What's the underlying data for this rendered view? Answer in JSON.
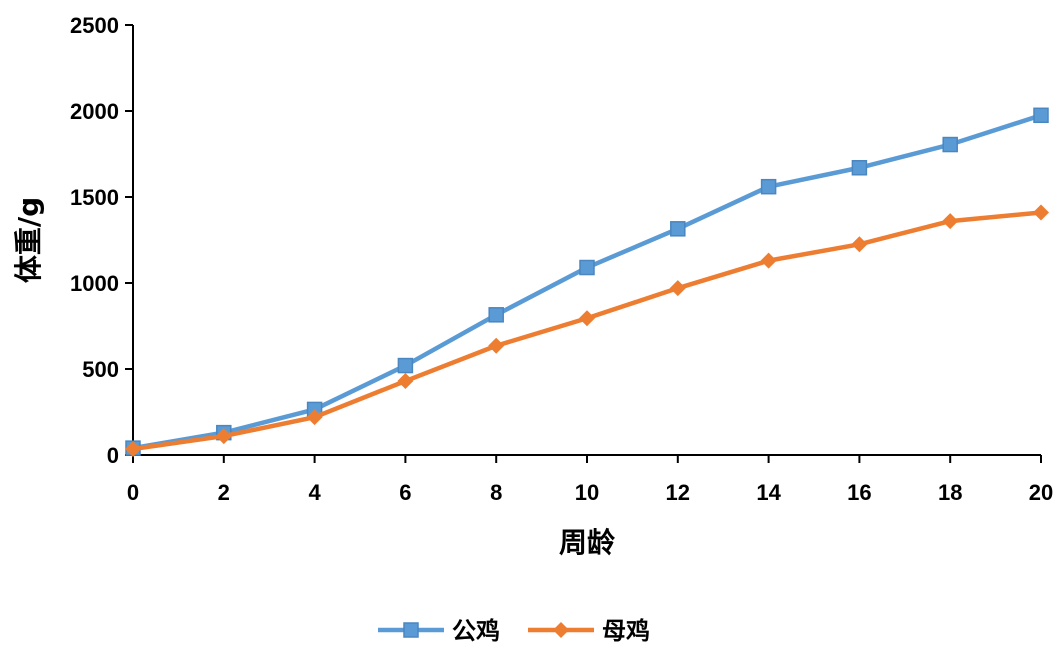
{
  "chart_data": {
    "type": "line",
    "x": [
      0,
      2,
      4,
      6,
      8,
      10,
      12,
      14,
      16,
      18,
      20
    ],
    "xlabel": "周龄",
    "ylabel": "体重/g",
    "xlim": [
      0,
      20
    ],
    "ylim": [
      0,
      2500
    ],
    "xticks": [
      "0",
      "2",
      "4",
      "6",
      "8",
      "10",
      "12",
      "14",
      "16",
      "18",
      "20"
    ],
    "yticks": [
      "0",
      "500",
      "1000",
      "1500",
      "2000",
      "2500"
    ],
    "grid": false,
    "legend_position": "bottom",
    "series": [
      {
        "name": "公鸡",
        "color": "#5B9BD5",
        "marker": "square",
        "values": [
          40,
          130,
          265,
          520,
          815,
          1090,
          1315,
          1560,
          1670,
          1805,
          1975
        ]
      },
      {
        "name": "母鸡",
        "color": "#ED7D31",
        "marker": "diamond",
        "values": [
          35,
          110,
          220,
          430,
          635,
          795,
          970,
          1130,
          1225,
          1360,
          1410
        ]
      }
    ]
  }
}
